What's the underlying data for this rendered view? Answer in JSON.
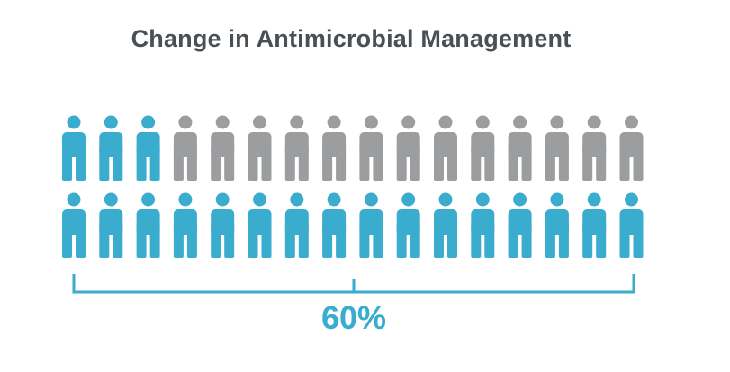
{
  "title": "Change in Antimicrobial Management",
  "icon": "person-icon",
  "rows": [
    {
      "total": 16,
      "highlighted": 3
    },
    {
      "total": 16,
      "highlighted": 16
    }
  ],
  "percent_label": "60%",
  "colors": {
    "highlight": "#3aacce",
    "muted": "#9b9d9f",
    "bracket": "#3aacce",
    "title": "#4a4f54"
  }
}
